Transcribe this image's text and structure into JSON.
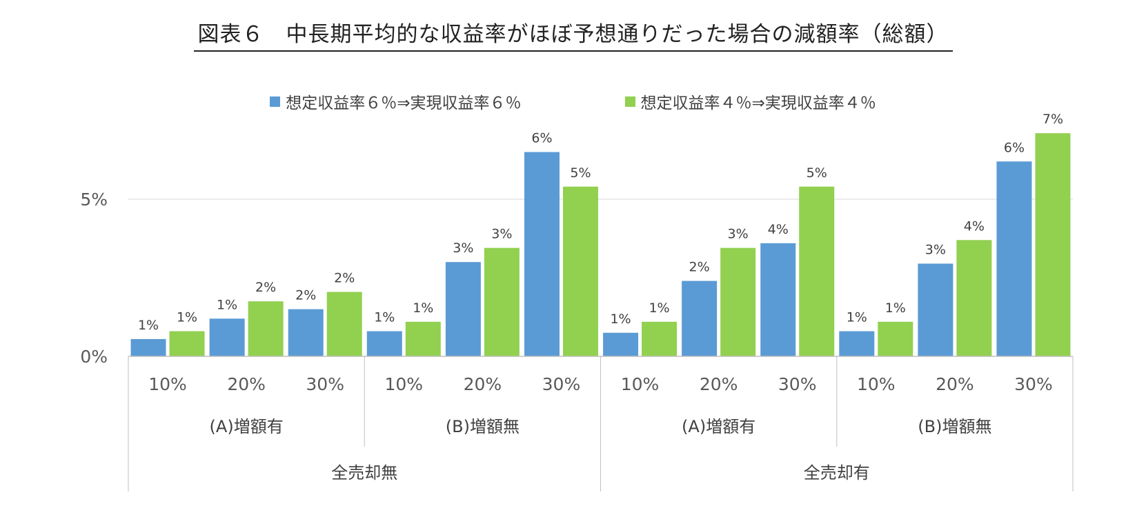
{
  "title": "図表６　中長期平均的な収益率がほぼ予想通りだった場合の減額率（総額）",
  "legend": [
    {
      "label": "想定収益率６％⇒実現収益率６％",
      "color": "#5B9BD5"
    },
    {
      "label": "想定収益率４％⇒実現収益率４％",
      "color": "#92D050"
    }
  ],
  "chart_data": {
    "type": "bar",
    "title": "図表６　中長期平均的な収益率がほぼ予想通りだった場合の減額率（総額）",
    "y_ticks": [
      "0%",
      "5%"
    ],
    "ylim": [
      0,
      7.5
    ],
    "grid": true,
    "legend_position": "top",
    "categories": [
      "10%",
      "20%",
      "30%",
      "10%",
      "20%",
      "30%",
      "10%",
      "20%",
      "30%",
      "10%",
      "20%",
      "30%"
    ],
    "group_level1": [
      "(A)増額有",
      "(B)増額無",
      "(A)増額有",
      "(B)増額無"
    ],
    "group_level2": [
      "全売却無",
      "全売却有"
    ],
    "series": [
      {
        "name": "想定収益率６％⇒実現収益率６％",
        "color": "#5B9BD5",
        "values": [
          0.55,
          1.2,
          1.5,
          0.8,
          3.0,
          6.5,
          0.75,
          2.4,
          3.6,
          0.8,
          2.95,
          6.2
        ],
        "labels": [
          "1%",
          "1%",
          "2%",
          "1%",
          "3%",
          "6%",
          "1%",
          "2%",
          "4%",
          "1%",
          "3%",
          "6%"
        ]
      },
      {
        "name": "想定収益率４％⇒実現収益率４％",
        "color": "#92D050",
        "values": [
          0.8,
          1.75,
          2.05,
          1.1,
          3.45,
          5.4,
          1.1,
          3.45,
          5.4,
          1.1,
          3.7,
          7.1
        ],
        "labels": [
          "1%",
          "2%",
          "2%",
          "1%",
          "3%",
          "5%",
          "1%",
          "3%",
          "5%",
          "1%",
          "4%",
          "7%"
        ]
      }
    ]
  }
}
